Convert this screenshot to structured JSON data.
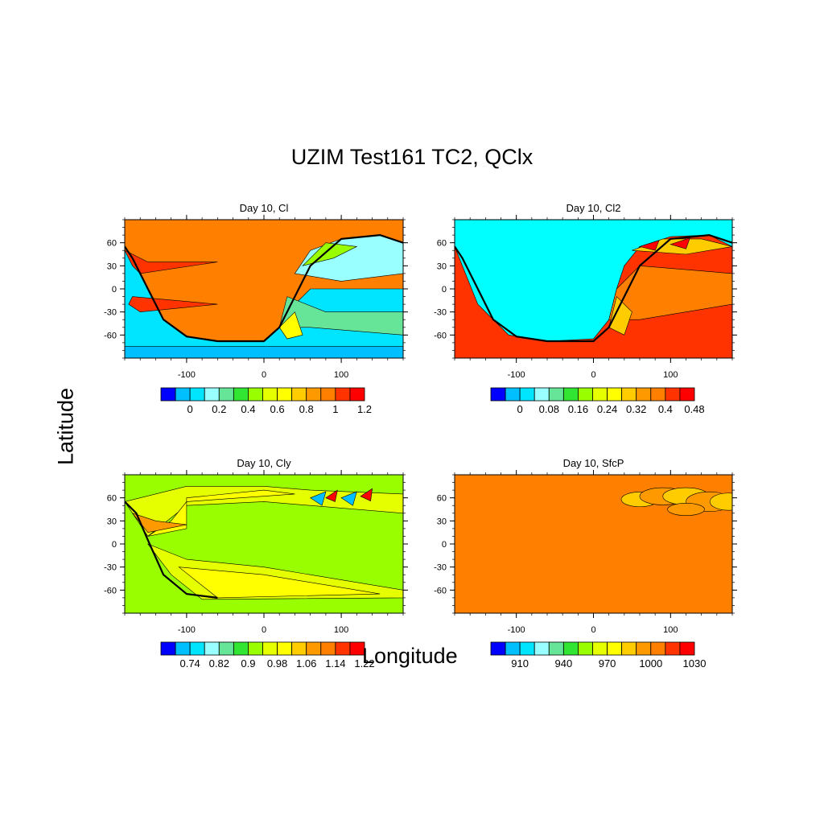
{
  "title": "UZIM Test161 TC2, QClx",
  "ylabel": "Latitude",
  "xlabel": "Longitude",
  "chart_data": [
    {
      "type": "heatmap",
      "id": "cl",
      "title": "Day 10, Cl",
      "x_ticks": [
        -100,
        0,
        100
      ],
      "y_ticks": [
        60,
        30,
        0,
        -30,
        -60
      ],
      "xlim": [
        -180,
        180
      ],
      "ylim": [
        -90,
        90
      ],
      "colorbar": {
        "colors": [
          "#0000ff",
          "#00bfff",
          "#00e5ff",
          "#99ffff",
          "#66e599",
          "#33e533",
          "#99ff00",
          "#e5ff00",
          "#ffff00",
          "#ffcc00",
          "#ff9900",
          "#ff7f00",
          "#ff3300",
          "#ff0000"
        ],
        "labels": [
          "0",
          "0.2",
          "0.4",
          "0.6",
          "0.8",
          "1",
          "1.2"
        ]
      }
    },
    {
      "type": "heatmap",
      "id": "cl2",
      "title": "Day 10, Cl2",
      "x_ticks": [
        -100,
        0,
        100
      ],
      "y_ticks": [
        60,
        30,
        0,
        -30,
        -60
      ],
      "xlim": [
        -180,
        180
      ],
      "ylim": [
        -90,
        90
      ],
      "colorbar": {
        "colors": [
          "#0000ff",
          "#00bfff",
          "#00e5ff",
          "#99ffff",
          "#66e599",
          "#33e533",
          "#99ff00",
          "#e5ff00",
          "#ffff00",
          "#ffcc00",
          "#ff9900",
          "#ff7f00",
          "#ff3300",
          "#ff0000"
        ],
        "labels": [
          "0",
          "0.08",
          "0.16",
          "0.24",
          "0.32",
          "0.4",
          "0.48"
        ]
      }
    },
    {
      "type": "heatmap",
      "id": "cly",
      "title": "Day 10, Cly",
      "x_ticks": [
        -100,
        0,
        100
      ],
      "y_ticks": [
        60,
        30,
        0,
        -30,
        -60
      ],
      "xlim": [
        -180,
        180
      ],
      "ylim": [
        -90,
        90
      ],
      "colorbar": {
        "colors": [
          "#0000ff",
          "#00bfff",
          "#00e5ff",
          "#99ffff",
          "#66e599",
          "#33e533",
          "#99ff00",
          "#e5ff00",
          "#ffff00",
          "#ffcc00",
          "#ff9900",
          "#ff7f00",
          "#ff3300",
          "#ff0000"
        ],
        "labels": [
          "0.74",
          "0.82",
          "0.9",
          "0.98",
          "1.06",
          "1.14",
          "1.22"
        ]
      }
    },
    {
      "type": "heatmap",
      "id": "sfcp",
      "title": "Day 10, SfcP",
      "x_ticks": [
        -100,
        0,
        100
      ],
      "y_ticks": [
        60,
        30,
        0,
        -30,
        -60
      ],
      "xlim": [
        -180,
        180
      ],
      "ylim": [
        -90,
        90
      ],
      "colorbar": {
        "colors": [
          "#0000ff",
          "#00bfff",
          "#00e5ff",
          "#99ffff",
          "#66e599",
          "#33e533",
          "#99ff00",
          "#e5ff00",
          "#ffff00",
          "#ffcc00",
          "#ff9900",
          "#ff7f00",
          "#ff3300",
          "#ff0000"
        ],
        "labels": [
          "910",
          "940",
          "970",
          "1000",
          "1030"
        ]
      }
    }
  ]
}
